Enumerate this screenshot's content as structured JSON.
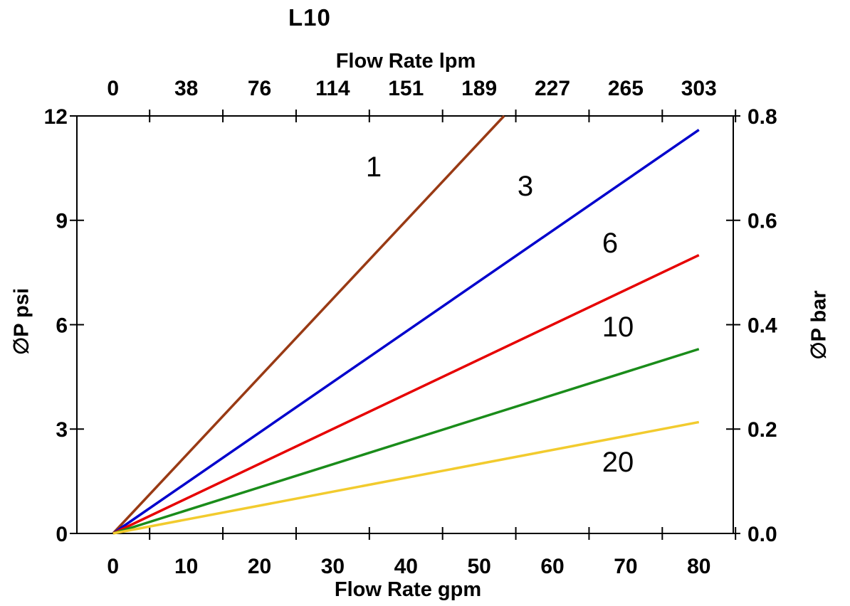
{
  "chart_data": {
    "type": "line",
    "title": "L10",
    "xlabel": "Flow Rate gpm",
    "x2label": "Flow Rate lpm",
    "ylabel": "∅P psi",
    "y2label": "∅P bar",
    "xlim_gpm": [
      0,
      85
    ],
    "ylim_psi": [
      0,
      12
    ],
    "y2lim_bar": [
      0.0,
      0.8
    ],
    "grid": false,
    "legend_position": "labels placed beside each line",
    "x_tick_labels_gpm": [
      "0",
      "10",
      "20",
      "30",
      "40",
      "50",
      "60",
      "70",
      "80"
    ],
    "x_tick_label_values_gpm": [
      0,
      10,
      20,
      30,
      40,
      50,
      60,
      70,
      80
    ],
    "x_tickmark_positions_gpm": [
      5,
      15,
      25,
      35,
      45,
      55,
      65,
      75,
      85
    ],
    "x2_tick_labels_lpm": [
      "0",
      "38",
      "76",
      "114",
      "151",
      "189",
      "227",
      "265",
      "303"
    ],
    "y_tick_labels_psi": [
      "0",
      "3",
      "6",
      "9",
      "12"
    ],
    "y_tick_values_psi": [
      0,
      3,
      6,
      9,
      12
    ],
    "y2_tick_labels_bar": [
      "0.0",
      "0.2",
      "0.4",
      "0.6",
      "0.8"
    ],
    "series": [
      {
        "name": "1",
        "color": "#993A14",
        "x_gpm": [
          0,
          53.4
        ],
        "y_psi": [
          0,
          12.0
        ]
      },
      {
        "name": "3",
        "color": "#0000CC",
        "x_gpm": [
          0,
          80
        ],
        "y_psi": [
          0,
          11.6
        ]
      },
      {
        "name": "6",
        "color": "#E60000",
        "x_gpm": [
          0,
          80
        ],
        "y_psi": [
          0,
          8.0
        ]
      },
      {
        "name": "10",
        "color": "#1A8C1A",
        "x_gpm": [
          0,
          80
        ],
        "y_psi": [
          0,
          5.3
        ]
      },
      {
        "name": "20",
        "color": "#F2CB2E",
        "x_gpm": [
          0,
          80
        ],
        "y_psi": [
          0,
          3.2
        ]
      }
    ],
    "axis_color": "#000000",
    "background_color": "#FFFFFF"
  }
}
